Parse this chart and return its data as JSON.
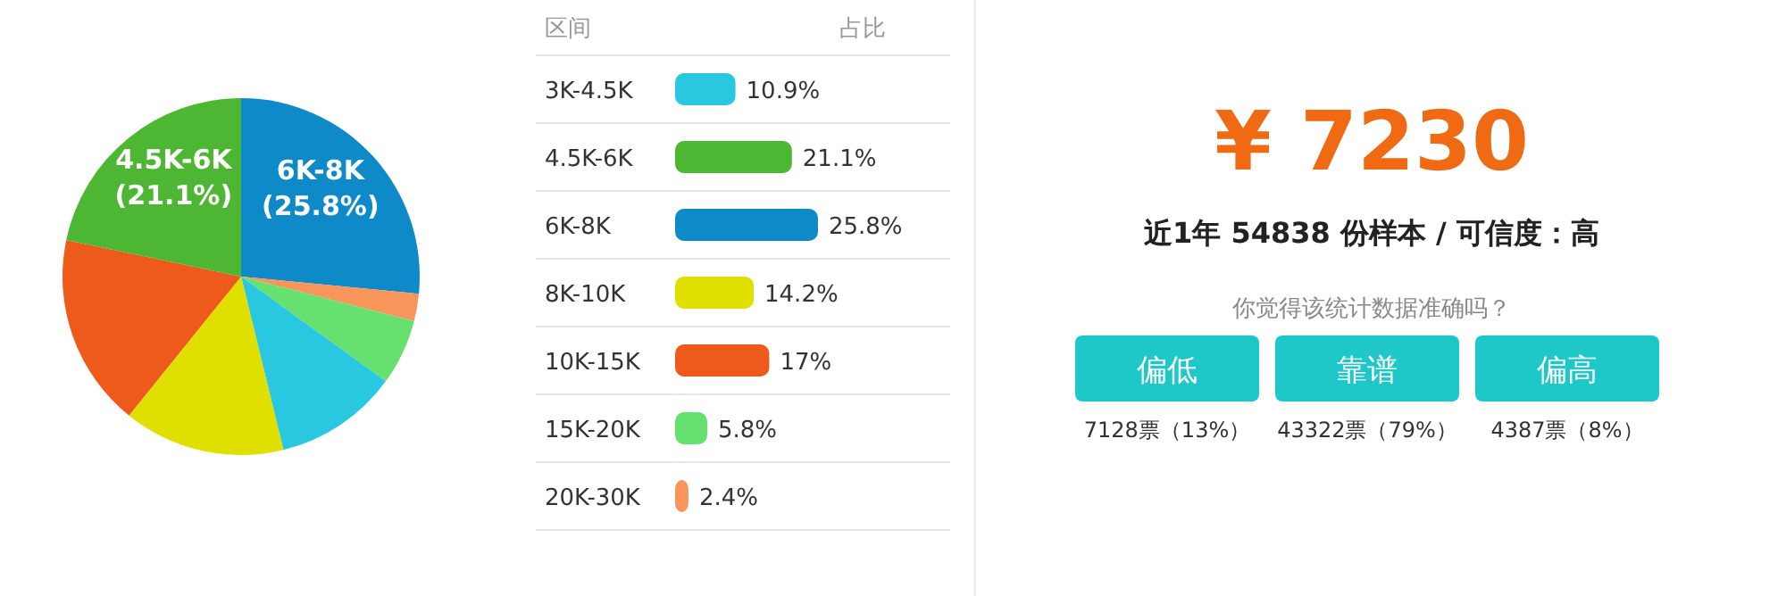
{
  "chart_data": [
    {
      "type": "pie",
      "categories": [
        "6K-8K",
        null,
        null,
        null,
        null,
        null,
        "4.5K-6K"
      ],
      "values": [
        25.8,
        2.4,
        5.8,
        10.9,
        14.2,
        17,
        21.1
      ],
      "value_labels": [
        "(25.8%)",
        null,
        null,
        null,
        null,
        null,
        "(21.1%)"
      ],
      "colors": [
        "#0e8ac8",
        "#f7955a",
        "#66e06f",
        "#2ac7e0",
        "#e0e000",
        "#ee5a1c",
        "#4db733"
      ]
    },
    {
      "type": "bar",
      "orientation": "horizontal",
      "ylabel": "区间",
      "xlabel": "占比",
      "categories": [
        "3K-4.5K",
        "4.5K-6K",
        "6K-8K",
        "8K-10K",
        "10K-15K",
        "15K-20K",
        "20K-30K"
      ],
      "values": [
        10.9,
        21.1,
        25.8,
        14.2,
        17,
        5.8,
        2.4
      ],
      "value_labels": [
        "10.9%",
        "21.1%",
        "25.8%",
        "14.2%",
        "17%",
        "5.8%",
        "2.4%"
      ],
      "colors": [
        "#2ac7e0",
        "#4db733",
        "#0e8ac8",
        "#e0e000",
        "#ee5a1c",
        "#66e06f",
        "#f7955a"
      ]
    },
    {
      "type": "other",
      "title": "¥ 7230",
      "subtitle": "近1年 54838 份样本 / 可信度：高",
      "annotations": [
        "你觉得该统计数据准确吗？",
        "偏低",
        "靠谱",
        "偏高",
        "7128票（13%）",
        "43322票（79%）",
        "4387票（8%）"
      ]
    }
  ]
}
